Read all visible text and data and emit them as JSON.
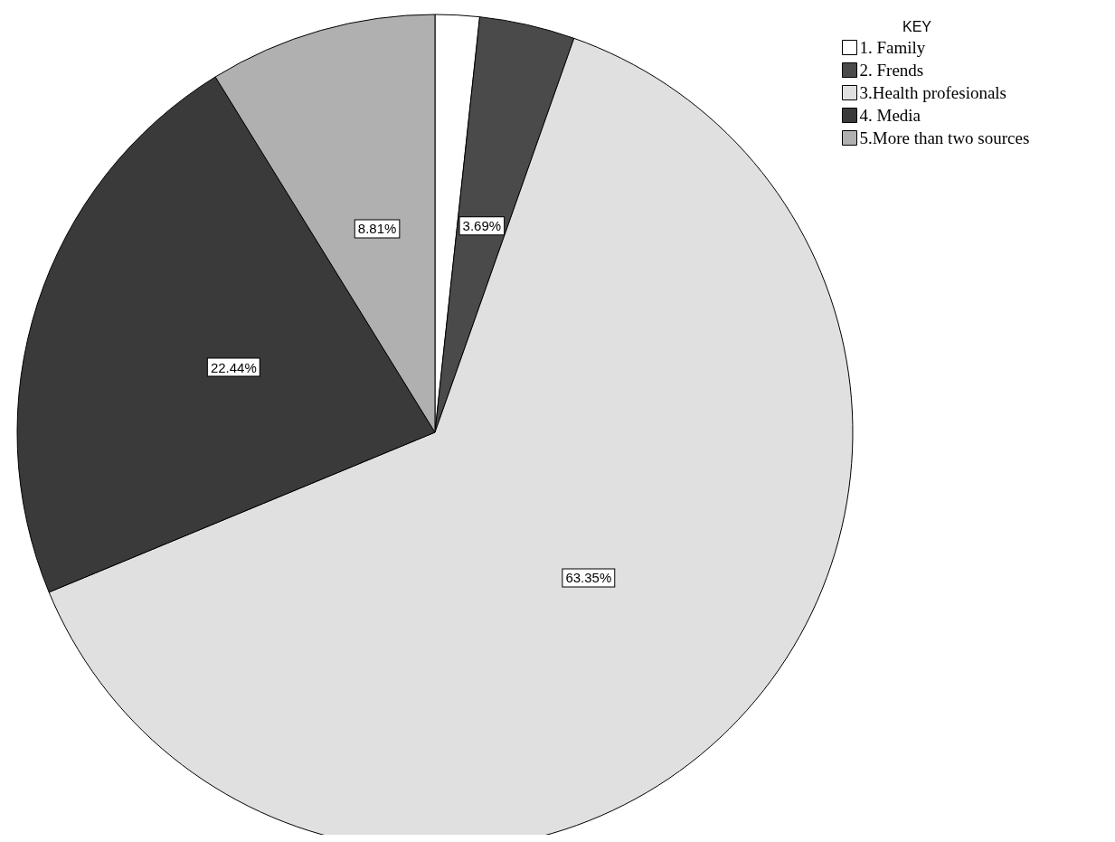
{
  "chart_data": {
    "type": "pie",
    "legend_title": "KEY",
    "categories": [
      "1. Family",
      "2. Frends",
      "3.Health profesionals",
      "4. Media",
      "5.More than two sources"
    ],
    "values": [
      1.71,
      3.69,
      63.35,
      22.44,
      8.81
    ],
    "colors": [
      "#ffffff",
      "#4a4a4a",
      "#e0e0e0",
      "#3a3a3a",
      "#b0b0b0"
    ],
    "value_labels": [
      null,
      "3.69%",
      "63.35%",
      "22.44%",
      "8.81%"
    ],
    "legend": "top right"
  }
}
